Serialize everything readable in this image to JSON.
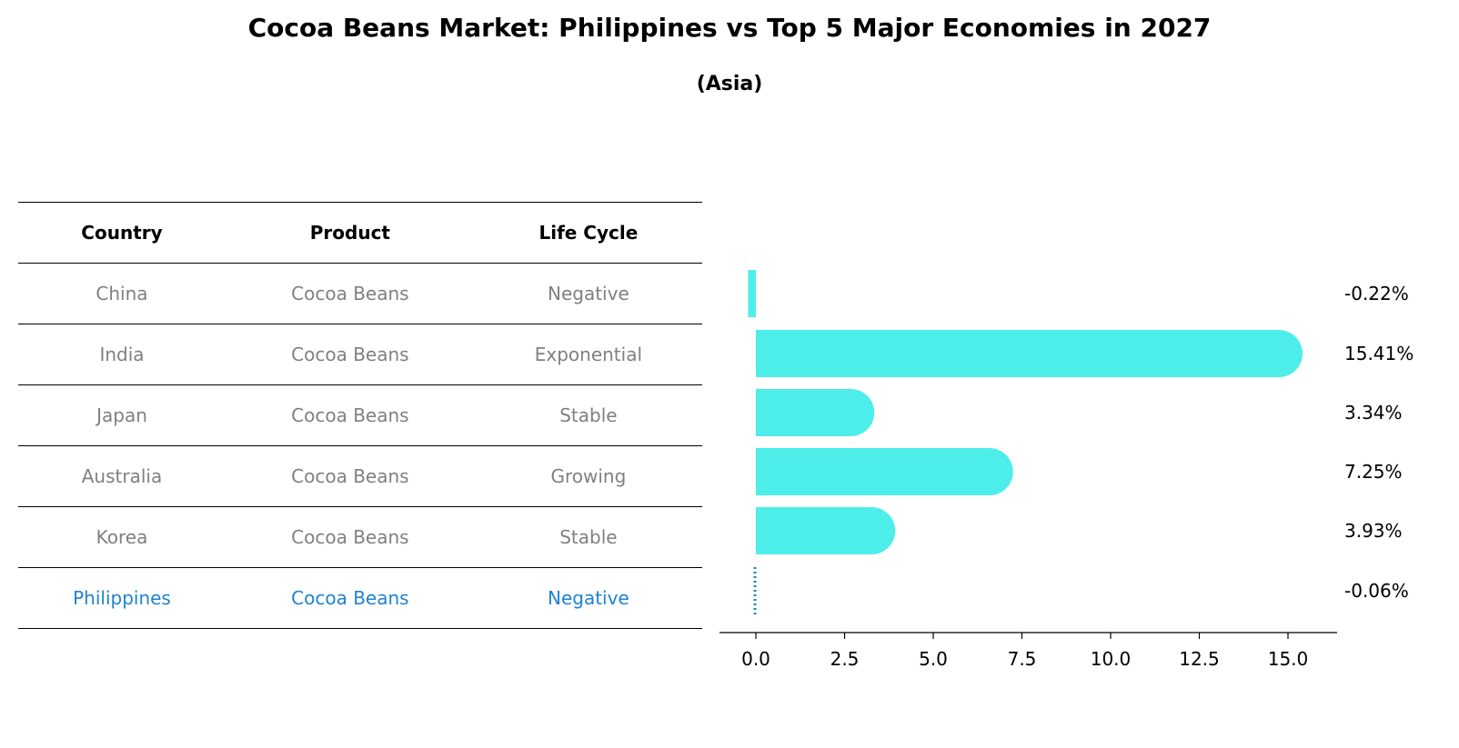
{
  "title": "Cocoa Beans Market: Philippines vs Top 5 Major Economies in 2027",
  "subtitle": "(Asia)",
  "table": {
    "headers": [
      "Country",
      "Product",
      "Life Cycle"
    ],
    "rows": [
      [
        "China",
        "Cocoa Beans",
        "Negative"
      ],
      [
        "India",
        "Cocoa Beans",
        "Exponential"
      ],
      [
        "Japan",
        "Cocoa Beans",
        "Stable"
      ],
      [
        "Australia",
        "Cocoa Beans",
        "Growing"
      ],
      [
        "Korea",
        "Cocoa Beans",
        "Stable"
      ],
      [
        "Philippines",
        "Cocoa Beans",
        "Negative"
      ]
    ],
    "highlight_row": 5
  },
  "colors": {
    "bar": "#4deeea",
    "highlight": "#1f83d1",
    "muted_text": "#808080"
  },
  "chart_data": {
    "type": "bar",
    "orientation": "horizontal",
    "categories": [
      "China",
      "India",
      "Japan",
      "Australia",
      "Korea",
      "Philippines"
    ],
    "values": [
      -0.22,
      15.41,
      3.34,
      7.25,
      3.93,
      -0.06
    ],
    "value_labels": [
      "-0.22%",
      "15.41%",
      "3.34%",
      "7.25%",
      "3.93%",
      "-0.06%"
    ],
    "xlim": [
      -1,
      16.2
    ],
    "xticks": [
      "0.0",
      "2.5",
      "5.0",
      "7.5",
      "10.0",
      "12.5",
      "15.0"
    ],
    "xtick_values": [
      0,
      2.5,
      5,
      7.5,
      10,
      12.5,
      15
    ],
    "grid": false,
    "legend": "none"
  }
}
